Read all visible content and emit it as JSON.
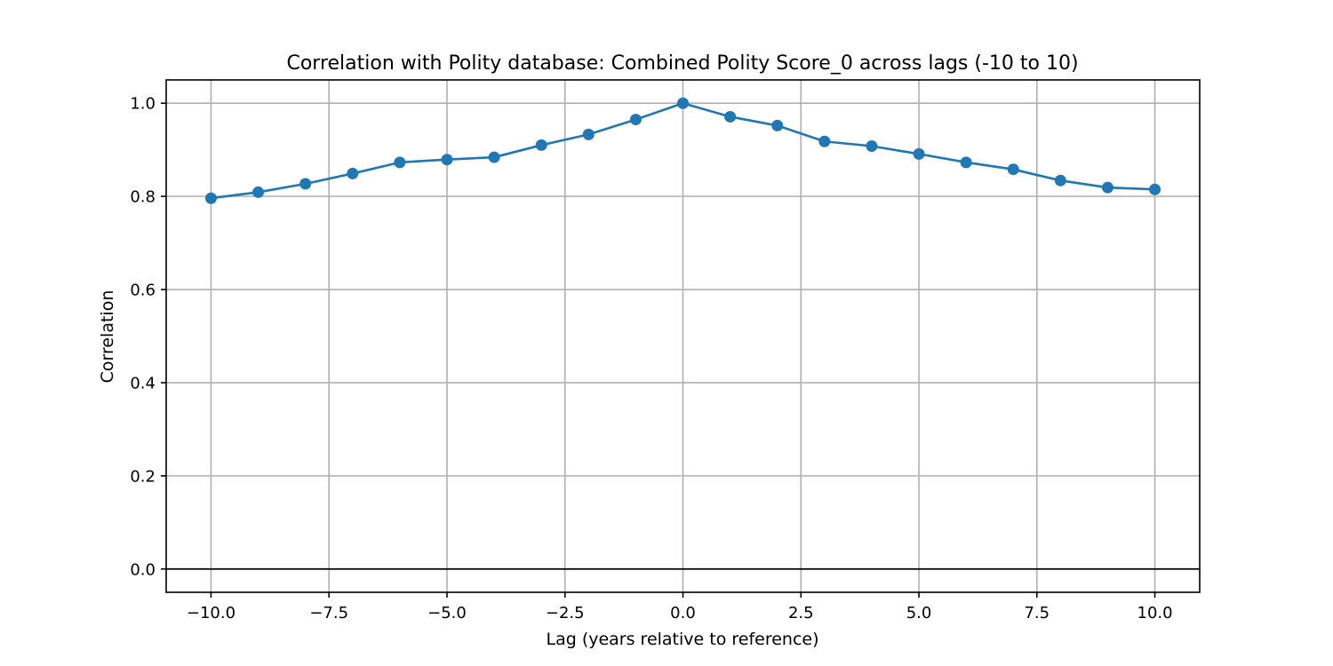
{
  "chart_data": {
    "type": "line",
    "title": "Correlation with Polity database: Combined Polity Score_0 across lags (-10 to 10)",
    "xlabel": "Lag (years relative to reference)",
    "ylabel": "Correlation",
    "xlim": [
      -10.95,
      10.95
    ],
    "ylim": [
      -0.05,
      1.05
    ],
    "xticks": [
      -10.0,
      -7.5,
      -5.0,
      -2.5,
      0.0,
      2.5,
      5.0,
      7.5,
      10.0
    ],
    "xtick_labels": [
      "−10.0",
      "−7.5",
      "−5.0",
      "−2.5",
      "0.0",
      "2.5",
      "5.0",
      "7.5",
      "10.0"
    ],
    "yticks": [
      0.0,
      0.2,
      0.4,
      0.6,
      0.8,
      1.0
    ],
    "ytick_labels": [
      "0.0",
      "0.2",
      "0.4",
      "0.6",
      "0.8",
      "1.0"
    ],
    "grid": true,
    "reference_line_y": 0.0,
    "series": [
      {
        "color": "#1f77b4",
        "marker": "circle",
        "x": [
          -10,
          -9,
          -8,
          -7,
          -6,
          -5,
          -4,
          -3,
          -2,
          -1,
          0,
          1,
          2,
          3,
          4,
          5,
          6,
          7,
          8,
          9,
          10
        ],
        "y": [
          0.796,
          0.809,
          0.827,
          0.849,
          0.873,
          0.879,
          0.884,
          0.91,
          0.933,
          0.965,
          1.0,
          0.971,
          0.952,
          0.918,
          0.908,
          0.891,
          0.873,
          0.858,
          0.834,
          0.819,
          0.815
        ]
      }
    ]
  }
}
